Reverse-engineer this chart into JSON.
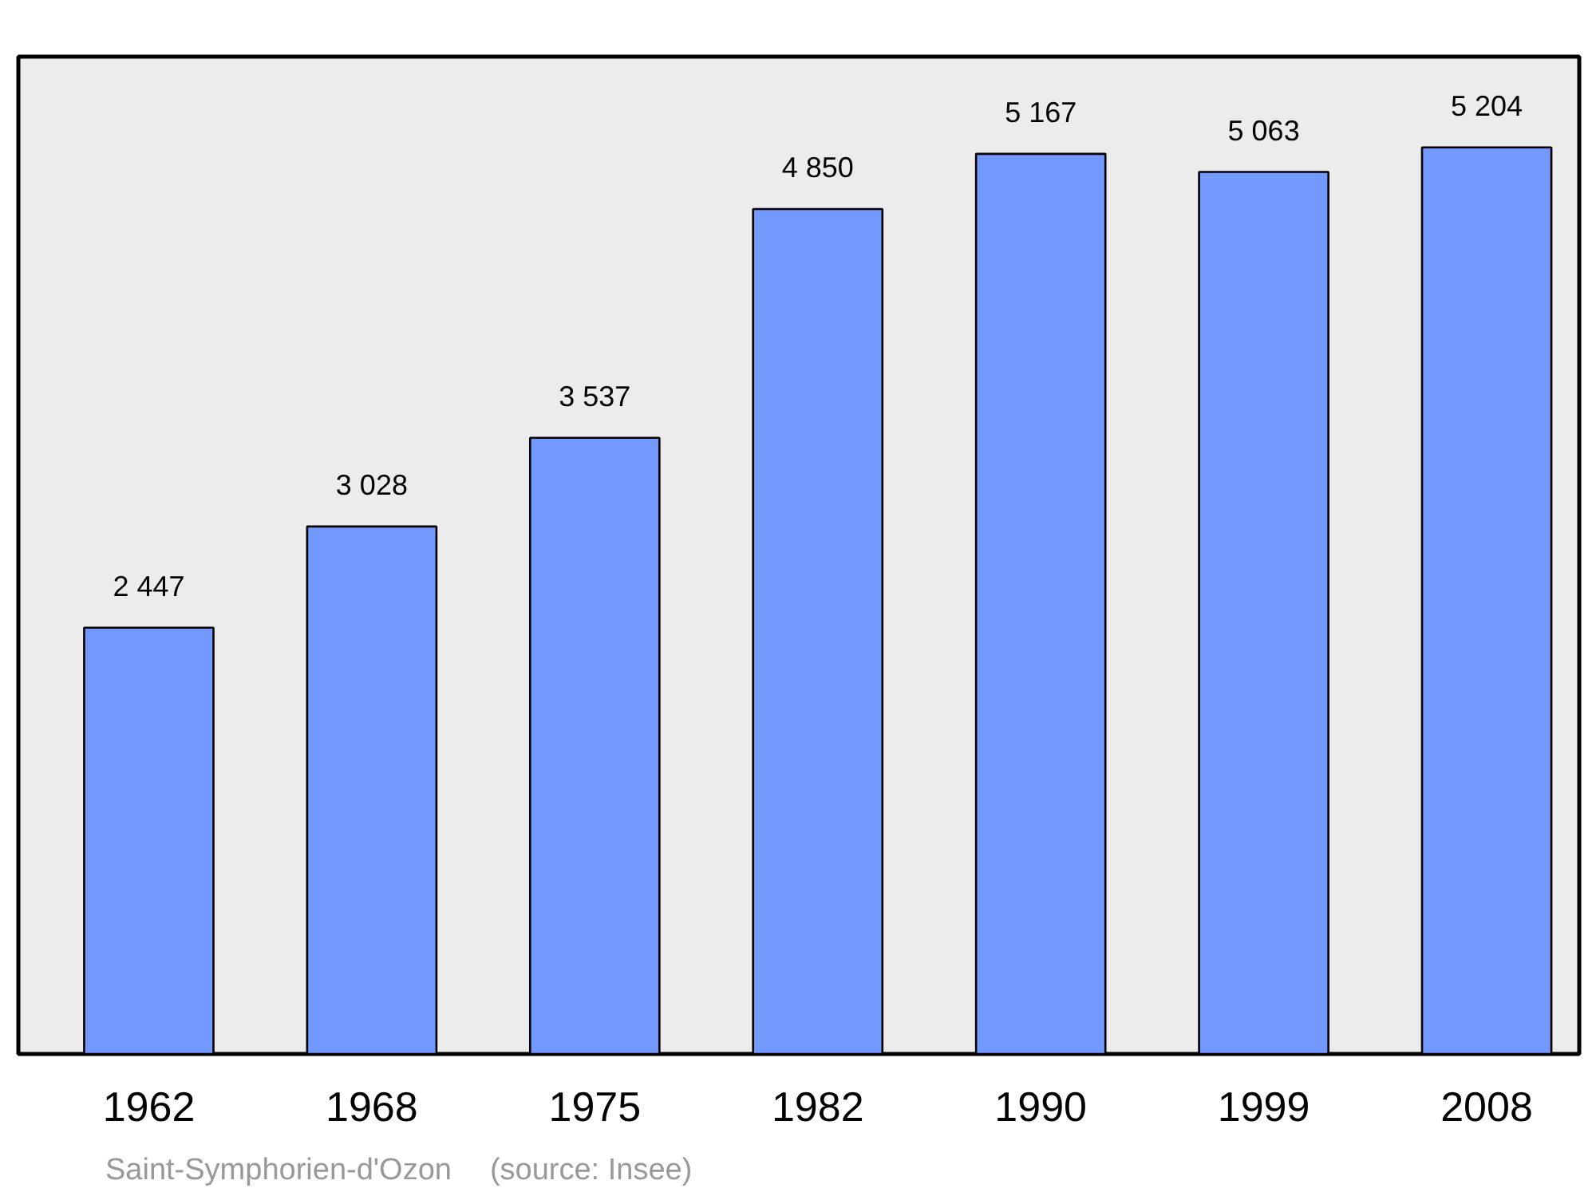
{
  "chart_data": {
    "type": "bar",
    "categories": [
      "1962",
      "1968",
      "1975",
      "1982",
      "1990",
      "1999",
      "2008"
    ],
    "values": [
      2447,
      3028,
      3537,
      4850,
      5167,
      5063,
      5204
    ],
    "value_labels": [
      "2 447",
      "3 028",
      "3 537",
      "4 850",
      "5 167",
      "5 063",
      "5 204"
    ],
    "color": "#7399ff",
    "ylim": [
      0,
      5725
    ],
    "tick_labels": "x",
    "grid": false,
    "annotations": [
      "Saint-Symphorien-d'Ozon",
      "(source: Insee)"
    ]
  }
}
